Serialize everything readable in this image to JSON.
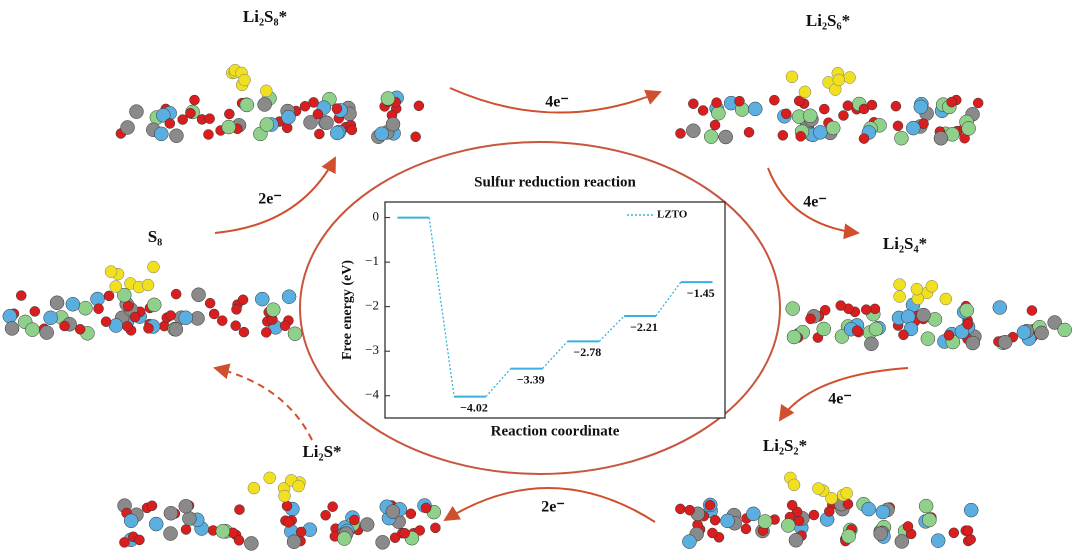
{
  "chart_data": {
    "type": "step",
    "title": "Sulfur reduction reaction",
    "x_label": "Reaction coordinate",
    "y_label": "Free energy (eV)",
    "categories": [
      null,
      null,
      null,
      null,
      null,
      null
    ],
    "series": [
      {
        "name": "LZTO",
        "color": "#3ab0e0",
        "values": [
          0,
          -4.02,
          -3.39,
          -2.78,
          -2.21,
          -1.45
        ],
        "value_labels": [
          null,
          "−4.02",
          "−3.39",
          "−2.78",
          "−2.21",
          "−1.45"
        ]
      }
    ],
    "ylim": [
      -4.5,
      0.35
    ],
    "yticks": [
      0,
      {
        "value": -1,
        "label": "−1"
      },
      {
        "value": -2,
        "label": "−2"
      },
      {
        "value": -3,
        "label": "−3"
      },
      {
        "value": -4,
        "label": "−4"
      }
    ],
    "legend": "upper right"
  },
  "species": [
    "Li₂S₈*",
    "Li₂S₆*",
    "Li₂S₄*",
    "Li₂S₂*",
    "Li₂S*",
    "S₈"
  ],
  "electrons": [
    "2e⁻",
    "4e⁻",
    "4e⁻",
    "4e⁻",
    "2e⁻"
  ]
}
